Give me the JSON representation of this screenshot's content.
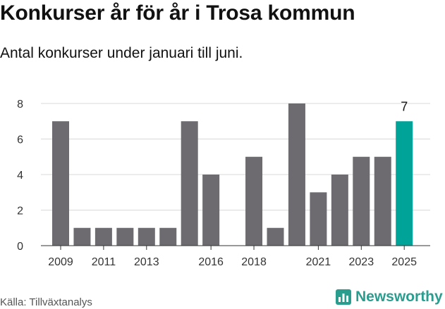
{
  "header": {
    "title": "Konkurser år för år i Trosa kommun",
    "subtitle": "Antal konkurser under januari till juni."
  },
  "footer": {
    "source": "Källa: Tillväxtanalys",
    "brand": "Newsworthy"
  },
  "colors": {
    "bar": "#6d6b70",
    "highlight": "#00a398",
    "grid": "#d9d9d9",
    "brand": "#2a9d8f"
  },
  "chart_data": {
    "type": "bar",
    "categories": [
      "2009",
      "2010",
      "2011",
      "2012",
      "2013",
      "2014",
      "2015",
      "2016",
      "2017",
      "2018",
      "2019",
      "2020",
      "2021",
      "2022",
      "2023",
      "2024",
      "2025"
    ],
    "values": [
      7,
      1,
      1,
      1,
      1,
      1,
      7,
      4,
      0,
      5,
      1,
      8,
      3,
      4,
      5,
      5,
      7
    ],
    "xticks": [
      "2009",
      "2011",
      "2013",
      "2016",
      "2018",
      "2021",
      "2023",
      "2025"
    ],
    "yticks": [
      0,
      2,
      4,
      6,
      8
    ],
    "ylim": [
      0,
      8
    ],
    "highlight": "2025",
    "annotations": [
      {
        "category": "2025",
        "text": "7"
      }
    ],
    "title": "Konkurser år för år i Trosa kommun",
    "xlabel": "",
    "ylabel": "",
    "grid": true
  }
}
